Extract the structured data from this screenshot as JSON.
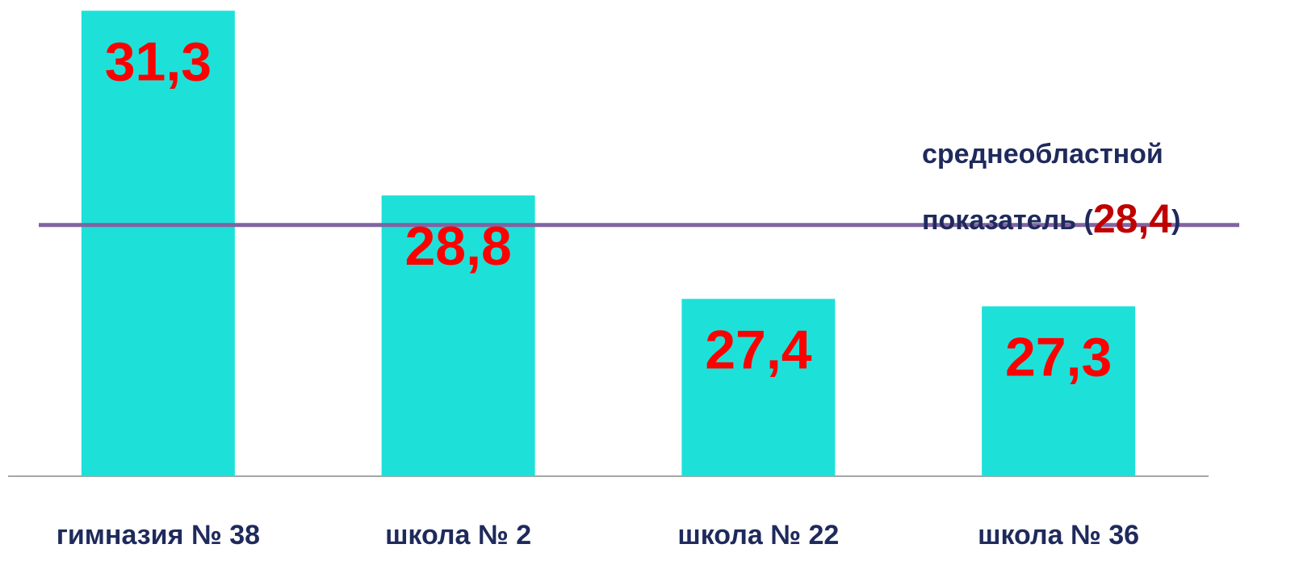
{
  "chart_data": {
    "type": "bar",
    "categories": [
      "гимназия № 38",
      "школа № 2",
      "школа № 22",
      "школа № 36"
    ],
    "values": [
      31.3,
      28.8,
      27.4,
      27.3
    ],
    "value_labels": [
      "31,3",
      "28,8",
      "27,4",
      "27,3"
    ],
    "color": "#1de1d9",
    "ylim": [
      25,
      31.5
    ],
    "reference_line": {
      "value": 28.4,
      "value_label": "28,4",
      "color": "#8064a2",
      "label_line1": "среднеобластной",
      "label_prefix": "показатель (",
      "label_suffix": ")"
    }
  }
}
